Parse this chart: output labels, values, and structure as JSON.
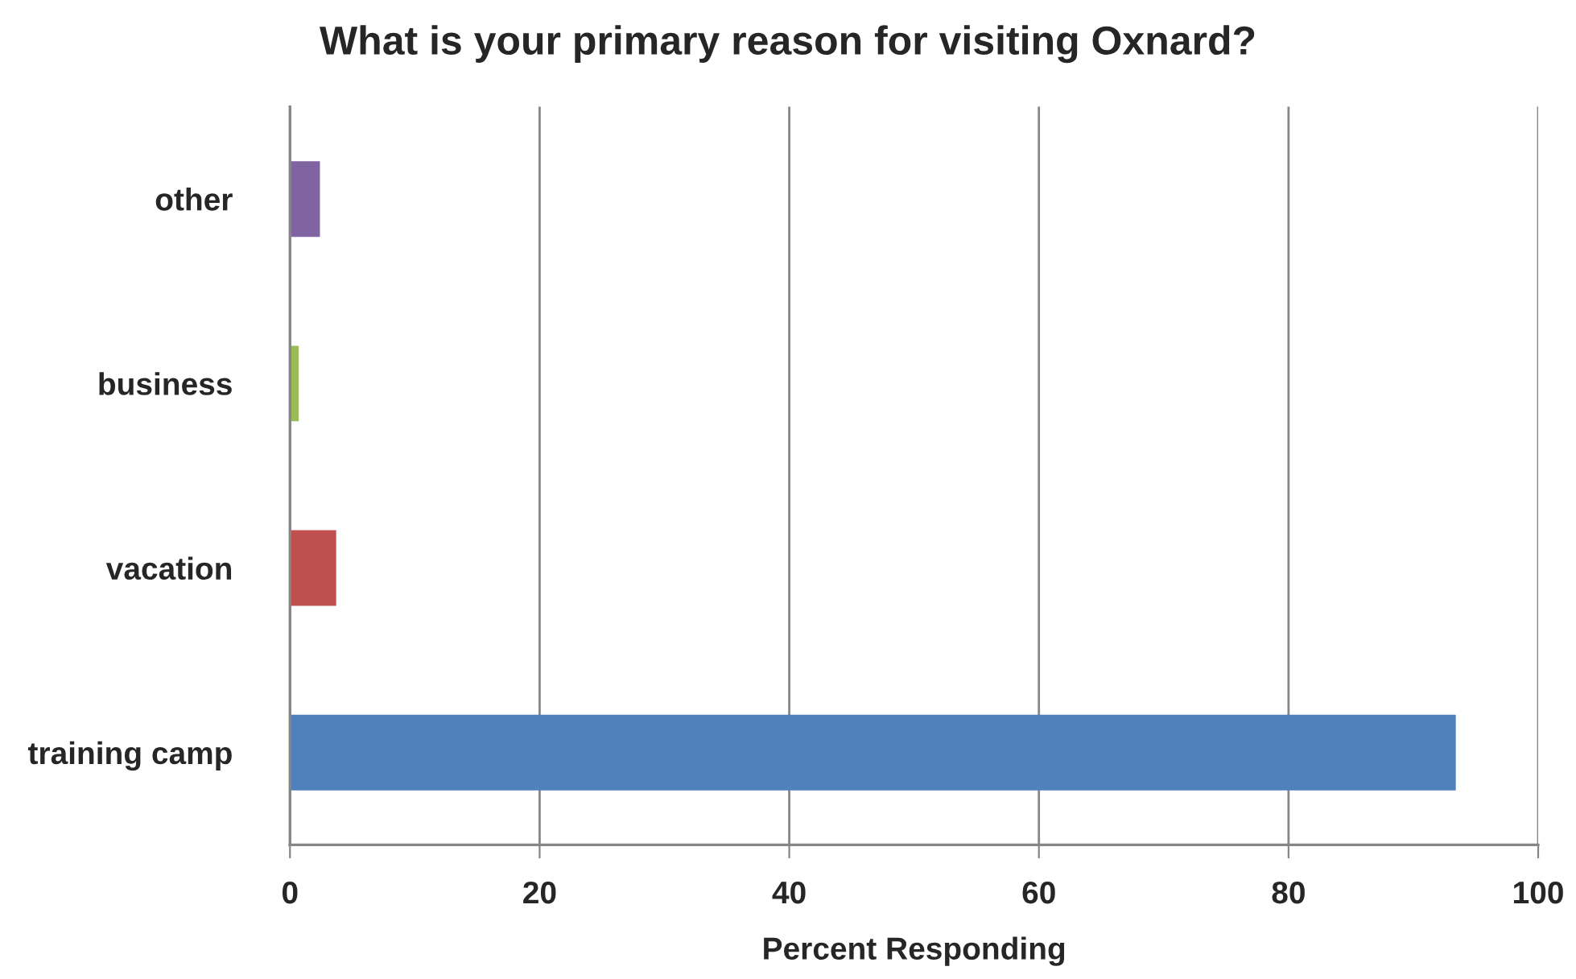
{
  "chart_data": {
    "type": "bar",
    "orientation": "horizontal",
    "title": "What is your primary reason for visiting Oxnard?",
    "xlabel": "Percent Responding",
    "categories": [
      "other",
      "business",
      "vacation",
      "training camp"
    ],
    "values": [
      2.4,
      0.7,
      3.7,
      93.4
    ],
    "colors": [
      "#8064a2",
      "#9bbb59",
      "#c0504d",
      "#4f81bd"
    ],
    "xlim": [
      0,
      100
    ],
    "xticks": [
      0,
      20,
      40,
      60,
      80,
      100
    ],
    "grid": "x"
  }
}
